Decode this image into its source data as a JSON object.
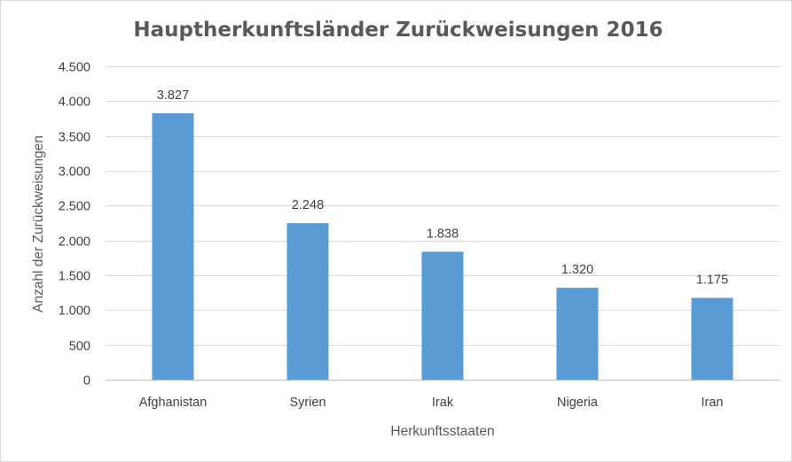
{
  "chart_data": {
    "type": "bar",
    "title": "Hauptherkunftsländer Zurückweisungen 2016",
    "xlabel": "Herkunftsstaaten",
    "ylabel": "Anzahl der Zurückweisungen",
    "categories": [
      "Afghanistan",
      "Syrien",
      "Irak",
      "Nigeria",
      "Iran"
    ],
    "values": [
      3827,
      2248,
      1838,
      1320,
      1175
    ],
    "data_labels": [
      "3.827",
      "2.248",
      "1.838",
      "1.320",
      "1.175"
    ],
    "ylim": [
      0,
      4500
    ],
    "yticks": [
      0,
      500,
      1000,
      1500,
      2000,
      2500,
      3000,
      3500,
      4000,
      4500
    ],
    "ytick_labels": [
      "0",
      "500",
      "1.000",
      "1.500",
      "2.000",
      "2.500",
      "3.000",
      "3.500",
      "4.000",
      "4.500"
    ],
    "grid": true,
    "legend": "none",
    "bar_color": "#5b9bd5"
  }
}
